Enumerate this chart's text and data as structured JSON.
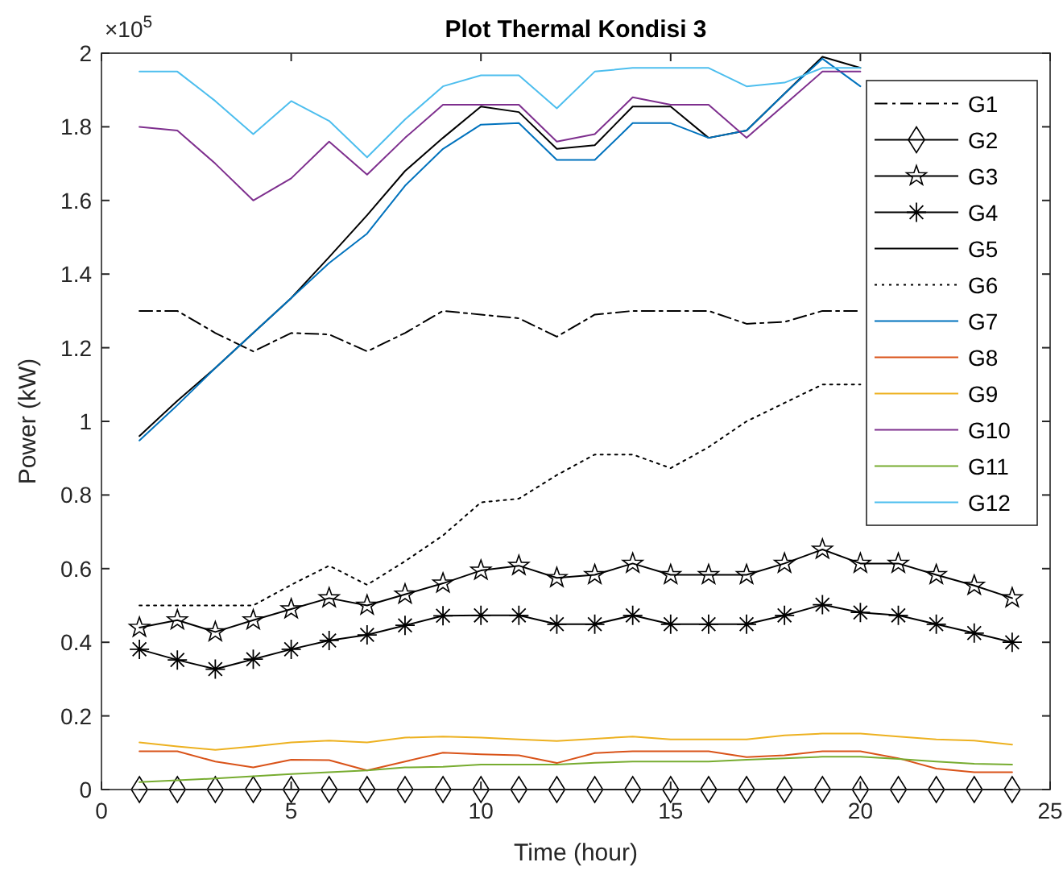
{
  "chart_data": {
    "type": "line",
    "title": "Plot Thermal Kondisi 3",
    "xlabel": "Time (hour)",
    "ylabel": "Power (kW)",
    "annotations": [
      "×10$^{5}$"
    ],
    "x": [
      1,
      2,
      3,
      4,
      5,
      6,
      7,
      8,
      9,
      10,
      11,
      12,
      13,
      14,
      15,
      16,
      17,
      18,
      19,
      20,
      21,
      22,
      23,
      24
    ],
    "xlim": [
      0,
      25
    ],
    "xticks": [
      0,
      5,
      10,
      15,
      20,
      25
    ],
    "ylim": [
      0,
      2
    ],
    "yticks": [
      0,
      0.2,
      0.4,
      0.6,
      0.8,
      1,
      1.2,
      1.4,
      1.6,
      1.8,
      2
    ],
    "grid": false,
    "legend": "top right",
    "series": [
      {
        "name": "G1",
        "color": "#000000",
        "line_style": "dashdot",
        "marker": "none",
        "values": [
          1.3,
          1.3,
          1.24,
          1.19,
          1.24,
          1.236,
          1.19,
          1.24,
          1.3,
          1.29,
          1.28,
          1.23,
          1.29,
          1.3,
          1.3,
          1.3,
          1.265,
          1.27,
          1.3,
          1.3,
          null,
          null,
          null,
          null
        ]
      },
      {
        "name": "G2",
        "color": "#000000",
        "line_style": "solid",
        "marker": "diamond",
        "values": [
          0,
          0,
          0,
          0,
          0,
          0,
          0,
          0,
          0,
          0,
          0,
          0,
          0,
          0,
          0,
          0,
          0,
          0,
          0,
          0,
          0,
          0,
          0,
          0
        ]
      },
      {
        "name": "G3",
        "color": "#000000",
        "line_style": "solid",
        "marker": "star",
        "values": [
          0.44,
          0.46,
          0.428,
          0.46,
          0.49,
          0.52,
          0.5,
          0.53,
          0.56,
          0.595,
          0.608,
          0.575,
          0.583,
          0.614,
          0.583,
          0.583,
          0.583,
          0.614,
          0.652,
          0.614,
          0.614,
          0.583,
          0.554,
          0.52
        ]
      },
      {
        "name": "G4",
        "color": "#000000",
        "line_style": "solid",
        "marker": "cross",
        "values": [
          0.381,
          0.352,
          0.327,
          0.354,
          0.381,
          0.405,
          0.42,
          0.446,
          0.472,
          0.473,
          0.473,
          0.449,
          0.449,
          0.473,
          0.449,
          0.449,
          0.449,
          0.473,
          0.502,
          0.481,
          0.473,
          0.449,
          0.425,
          0.4
        ]
      },
      {
        "name": "G5",
        "color": "#000000",
        "line_style": "solid",
        "marker": "none",
        "values": [
          0.96,
          1.056,
          1.145,
          1.24,
          1.335,
          1.446,
          1.56,
          1.68,
          1.77,
          1.855,
          1.84,
          1.74,
          1.75,
          1.855,
          1.855,
          1.77,
          1.79,
          1.89,
          1.99,
          1.96,
          null,
          null,
          null,
          null
        ]
      },
      {
        "name": "G6",
        "color": "#000000",
        "line_style": "dotted",
        "marker": "none",
        "values": [
          0.5,
          0.5,
          0.5,
          0.5,
          0.556,
          0.608,
          0.556,
          0.62,
          0.69,
          0.78,
          0.79,
          0.854,
          0.91,
          0.91,
          0.873,
          0.93,
          1.0,
          1.05,
          1.1,
          1.1,
          null,
          null,
          null,
          null
        ]
      },
      {
        "name": "G7",
        "color": "#0072bd",
        "line_style": "solid",
        "marker": "none",
        "values": [
          0.948,
          1.044,
          1.145,
          1.24,
          1.335,
          1.43,
          1.51,
          1.64,
          1.74,
          1.806,
          1.81,
          1.71,
          1.71,
          1.81,
          1.81,
          1.77,
          1.79,
          1.89,
          1.985,
          1.91,
          null,
          null,
          null,
          null
        ]
      },
      {
        "name": "G8",
        "color": "#d95319",
        "line_style": "solid",
        "marker": "none",
        "values": [
          0.104,
          0.104,
          0.076,
          0.06,
          0.081,
          0.08,
          0.052,
          0.076,
          0.1,
          0.096,
          0.093,
          0.072,
          0.099,
          0.104,
          0.104,
          0.104,
          0.088,
          0.093,
          0.104,
          0.104,
          0.085,
          0.057,
          0.047,
          0.047
        ]
      },
      {
        "name": "G9",
        "color": "#edb120",
        "line_style": "solid",
        "marker": "none",
        "values": [
          0.128,
          0.117,
          0.108,
          0.117,
          0.128,
          0.133,
          0.128,
          0.141,
          0.144,
          0.141,
          0.136,
          0.132,
          0.138,
          0.144,
          0.136,
          0.136,
          0.136,
          0.147,
          0.152,
          0.152,
          0.144,
          0.136,
          0.133,
          0.122
        ]
      },
      {
        "name": "G10",
        "color": "#7e2f8e",
        "line_style": "solid",
        "marker": "none",
        "values": [
          1.8,
          1.79,
          1.7,
          1.6,
          1.66,
          1.76,
          1.67,
          1.77,
          1.86,
          1.86,
          1.86,
          1.76,
          1.78,
          1.88,
          1.86,
          1.86,
          1.77,
          1.86,
          1.95,
          1.95,
          null,
          null,
          null,
          null
        ]
      },
      {
        "name": "G11",
        "color": "#77ac30",
        "line_style": "solid",
        "marker": "none",
        "values": [
          0.02,
          0.025,
          0.03,
          0.036,
          0.042,
          0.047,
          0.052,
          0.06,
          0.062,
          0.068,
          0.068,
          0.068,
          0.073,
          0.076,
          0.076,
          0.076,
          0.081,
          0.085,
          0.089,
          0.089,
          0.083,
          0.076,
          0.07,
          0.068
        ]
      },
      {
        "name": "G12",
        "color": "#4dbeee",
        "line_style": "solid",
        "marker": "none",
        "values": [
          1.95,
          1.95,
          1.87,
          1.78,
          1.87,
          1.816,
          1.717,
          1.82,
          1.91,
          1.94,
          1.94,
          1.85,
          1.95,
          1.96,
          1.96,
          1.96,
          1.91,
          1.92,
          1.96,
          1.96,
          null,
          null,
          null,
          null
        ]
      }
    ]
  }
}
